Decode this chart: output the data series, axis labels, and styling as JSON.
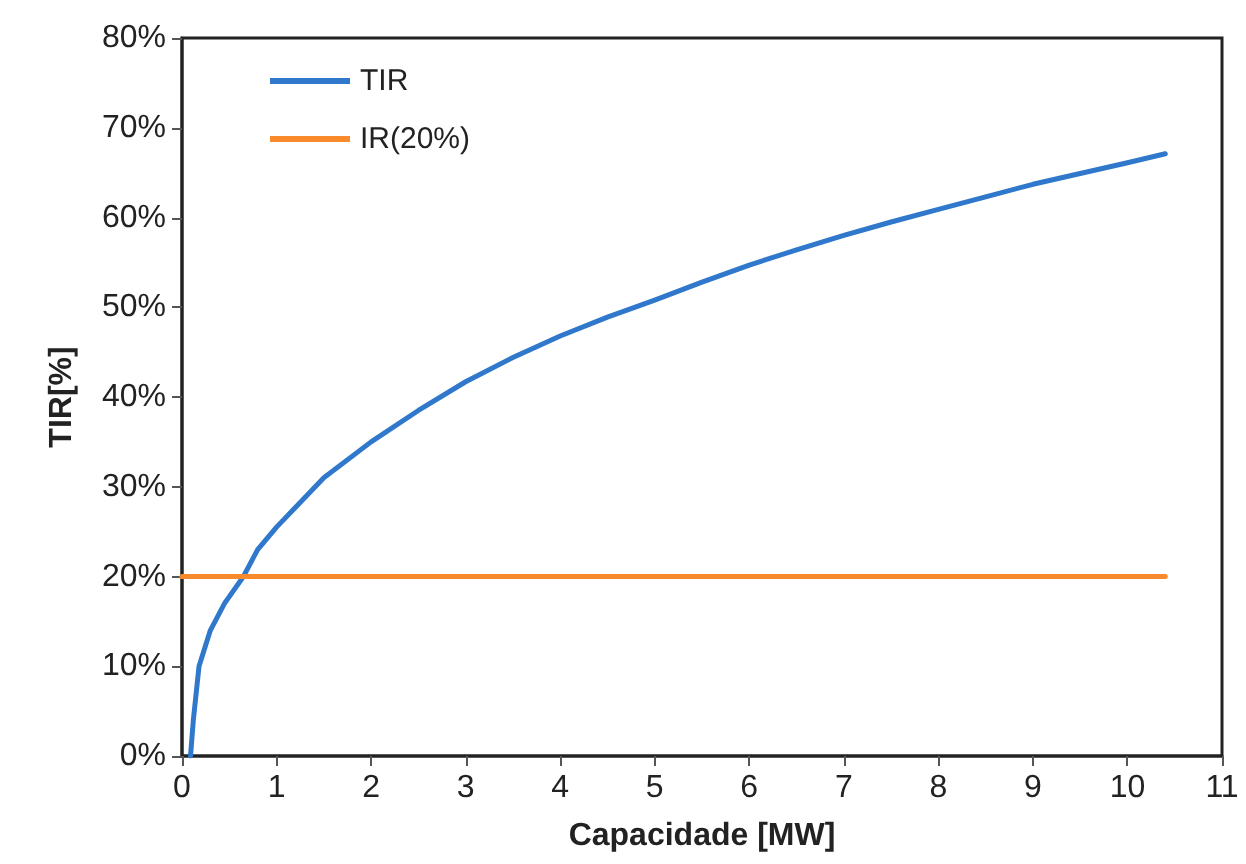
{
  "chart_data": {
    "type": "line",
    "xlabel": "Capacidade [MW]",
    "ylabel": "TIR[%]",
    "xlim": [
      0,
      11
    ],
    "xticks": [
      0,
      1,
      2,
      3,
      4,
      5,
      6,
      7,
      8,
      9,
      10,
      11
    ],
    "ylim": [
      0,
      80
    ],
    "yticks": [
      {
        "value": 0,
        "label": "0%"
      },
      {
        "value": 10,
        "label": "10%"
      },
      {
        "value": 20,
        "label": "20%"
      },
      {
        "value": 30,
        "label": "30%"
      },
      {
        "value": 40,
        "label": "40%"
      },
      {
        "value": 50,
        "label": "50%"
      },
      {
        "value": 60,
        "label": "60%"
      },
      {
        "value": 70,
        "label": "70%"
      },
      {
        "value": 80,
        "label": "80%"
      }
    ],
    "grid": false,
    "legend": "top left",
    "marker": "none",
    "line_style": "solid",
    "series": [
      {
        "name": "TIR",
        "color": "#2f78cc",
        "x": [
          0.09,
          0.12,
          0.18,
          0.3,
          0.45,
          0.65,
          0.8,
          1,
          1.5,
          2,
          2.5,
          3,
          3.5,
          4,
          4.5,
          5,
          5.5,
          6,
          6.5,
          7,
          7.5,
          8,
          8.5,
          9,
          9.5,
          10,
          10.4
        ],
        "values": [
          0,
          4,
          10,
          14,
          17,
          20,
          23,
          25.5,
          31,
          35,
          38.5,
          41.7,
          44.4,
          46.8,
          48.9,
          50.8,
          52.8,
          54.7,
          56.4,
          58,
          59.5,
          60.9,
          62.3,
          63.7,
          64.9,
          66.1,
          67.1
        ]
      },
      {
        "name": "IR(20%)",
        "color": "#f98a2c",
        "x": [
          0,
          10.4
        ],
        "values": [
          20,
          20
        ]
      }
    ]
  }
}
